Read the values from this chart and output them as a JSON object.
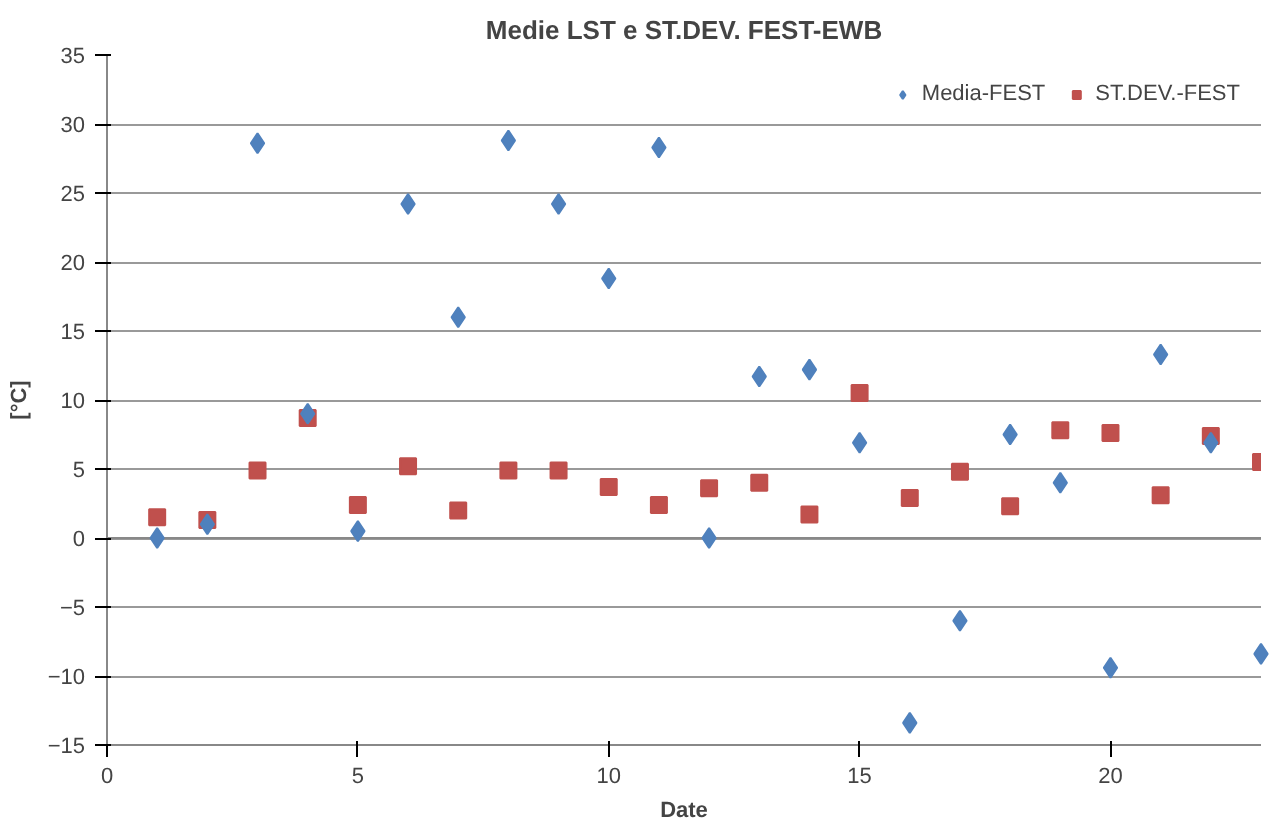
{
  "chart_data": {
    "type": "scatter",
    "title": "Medie LST e ST.DEV. FEST-EWB",
    "xlabel": "Date",
    "ylabel": "[°C]",
    "x": [
      1,
      2,
      3,
      4,
      5,
      6,
      7,
      8,
      9,
      10,
      11,
      12,
      13,
      14,
      15,
      16,
      17,
      18,
      19,
      20,
      21,
      22,
      23
    ],
    "series": [
      {
        "name": "Media-FEST",
        "color": "#4f81bd",
        "marker": "diamond",
        "values": [
          0,
          1.0,
          28.6,
          9.0,
          0.5,
          24.2,
          16.0,
          28.8,
          24.2,
          18.8,
          28.3,
          0,
          11.7,
          12.2,
          6.9,
          -13.4,
          -6.0,
          7.5,
          4.0,
          -9.4,
          13.3,
          6.9,
          -8.4
        ]
      },
      {
        "name": "ST.DEV.-FEST",
        "color": "#c0504d",
        "marker": "square",
        "values": [
          1.5,
          1.3,
          4.9,
          8.7,
          2.4,
          5.2,
          2.0,
          4.9,
          4.9,
          3.7,
          2.4,
          3.6,
          4.0,
          1.7,
          10.5,
          2.9,
          4.8,
          2.3,
          7.8,
          7.6,
          3.1,
          7.4,
          5.5
        ]
      }
    ],
    "xlim": [
      0,
      23
    ],
    "xticks": [
      0,
      5,
      10,
      15,
      20
    ],
    "ylim": [
      -15,
      35
    ],
    "yticks": [
      -15,
      -10,
      -5,
      0,
      5,
      10,
      15,
      20,
      25,
      30,
      35
    ],
    "grid": "y",
    "legend": "top right"
  }
}
